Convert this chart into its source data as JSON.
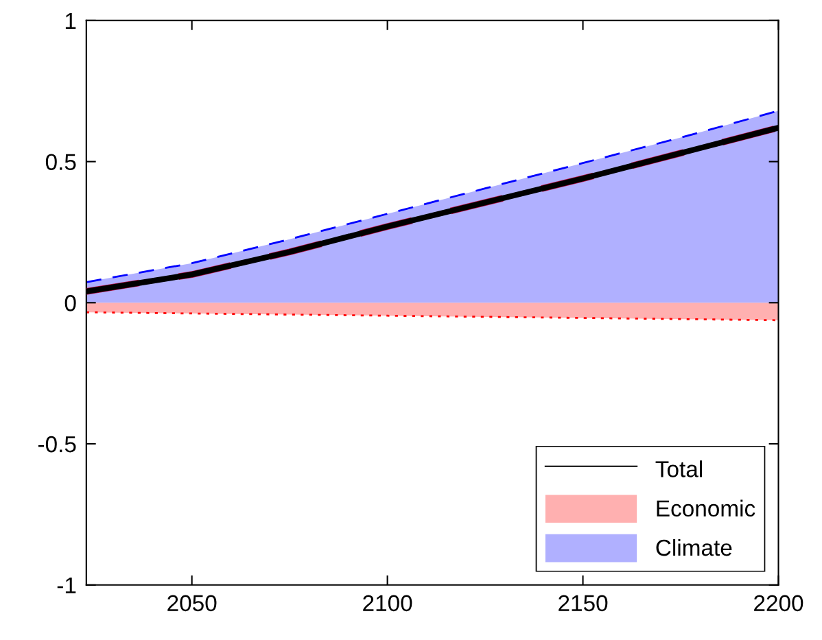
{
  "chart_data": {
    "type": "line",
    "x": [
      2023,
      2050,
      2075,
      2100,
      2125,
      2150,
      2175,
      2200
    ],
    "series": [
      {
        "name": "Total",
        "color": "#000000",
        "line_style": "solid",
        "values": [
          0.04,
          0.1,
          0.18,
          0.27,
          0.355,
          0.44,
          0.53,
          0.62
        ]
      },
      {
        "name": "Economic",
        "type": "area",
        "color": "#ffb0b0",
        "line_style": "dotted",
        "values": [
          -0.034,
          -0.038,
          -0.042,
          -0.046,
          -0.05,
          -0.054,
          -0.058,
          -0.062
        ]
      },
      {
        "name": "Climate",
        "type": "area",
        "color": "#b0b0ff",
        "line_style": "dashed",
        "values": [
          0.073,
          0.14,
          0.225,
          0.315,
          0.405,
          0.495,
          0.585,
          0.68
        ]
      },
      {
        "type": "line",
        "color": "#c0144c",
        "line_style": "dashed",
        "values": [
          0.04,
          0.1,
          0.18,
          0.27,
          0.355,
          0.44,
          0.53,
          0.62
        ]
      }
    ],
    "xlim": [
      2023,
      2200
    ],
    "xticks": [
      2050,
      2100,
      2150,
      2200
    ],
    "ylim": [
      -1,
      1
    ],
    "yticks": [
      -1,
      -0.5,
      0,
      0.5,
      1
    ],
    "grid": false,
    "legend": "bottom right"
  }
}
